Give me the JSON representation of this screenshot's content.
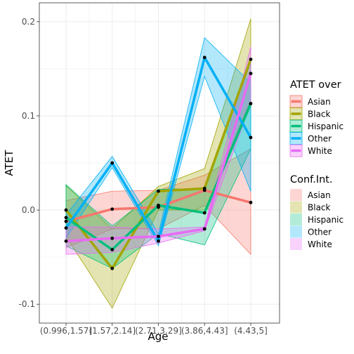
{
  "chart_data": {
    "type": "line",
    "xlabel": "Age",
    "ylabel": "ATET",
    "categories": [
      "(0.996,1.57]",
      "(1.57,2.14]",
      "(2.71,3.29]",
      "(3.86,4.43]",
      "(4.43,5]"
    ],
    "ylim": [
      -0.12,
      0.22
    ],
    "yticks": [
      -0.1,
      0.0,
      0.1,
      0.2
    ],
    "ytick_labels": [
      "-0.1",
      "0.0",
      "0.1",
      "0.2"
    ],
    "grid": true,
    "legend_position": "right",
    "legend_line_title": "ATET over",
    "legend_ci_title": "Conf.Int.",
    "series": [
      {
        "name": "Asian",
        "color": "#F8766D",
        "values": [
          -0.012,
          0.001,
          0.003,
          0.021,
          0.008
        ],
        "lower": [
          -0.04,
          -0.02,
          -0.02,
          0.005,
          -0.047
        ],
        "upper": [
          0.01,
          0.02,
          0.021,
          0.037,
          0.065
        ]
      },
      {
        "name": "Black",
        "color": "#A3A500",
        "values": [
          0.0,
          -0.062,
          0.02,
          0.023,
          0.16
        ],
        "lower": [
          -0.028,
          -0.104,
          0.0,
          0.0,
          0.117
        ],
        "upper": [
          0.026,
          -0.02,
          0.025,
          0.044,
          0.203
        ]
      },
      {
        "name": "Hispanic",
        "color": "#00BF7D",
        "values": [
          -0.008,
          -0.042,
          0.005,
          -0.003,
          0.113
        ],
        "lower": [
          -0.038,
          -0.062,
          -0.025,
          -0.037,
          0.065
        ],
        "upper": [
          0.027,
          -0.017,
          0.022,
          0.023,
          0.16
        ]
      },
      {
        "name": "Other",
        "color": "#00B0F6",
        "values": [
          -0.019,
          0.05,
          -0.033,
          0.162,
          0.077
        ],
        "lower": [
          -0.03,
          0.045,
          -0.038,
          0.142,
          0.02
        ],
        "upper": [
          -0.005,
          0.057,
          -0.025,
          0.183,
          0.135
        ]
      },
      {
        "name": "White",
        "color": "#E76BF3",
        "values": [
          -0.033,
          -0.03,
          -0.028,
          -0.02,
          0.145
        ],
        "lower": [
          -0.047,
          -0.045,
          -0.035,
          -0.022,
          0.113
        ],
        "upper": [
          -0.018,
          -0.018,
          -0.02,
          -0.018,
          0.173
        ]
      }
    ]
  }
}
